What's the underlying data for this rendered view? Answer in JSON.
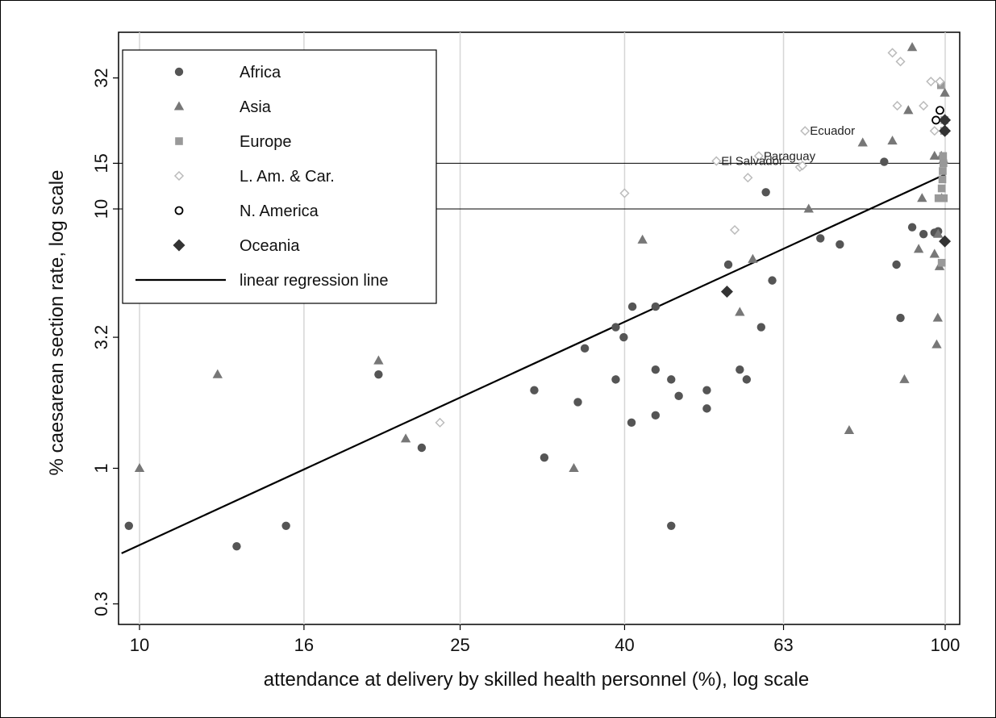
{
  "chart_data": {
    "type": "scatter",
    "title": "",
    "xlabel": "attendance at delivery by skilled health personnel (%), log scale",
    "ylabel": "% caesarean section rate, log scale",
    "x_scale": "log",
    "y_scale": "log",
    "xlim": [
      9.5,
      100
    ],
    "ylim": [
      0.25,
      48
    ],
    "x_ticks": [
      10,
      16,
      25,
      40,
      63,
      100
    ],
    "x_tick_labels": [
      "10",
      "16",
      "25",
      "40",
      "63",
      "100"
    ],
    "y_ticks": [
      0.3,
      1,
      3.2,
      10,
      15,
      32
    ],
    "y_tick_labels": [
      "0.3",
      "1",
      "3.2",
      "10",
      "15",
      "32"
    ],
    "reference_lines_y": [
      10,
      15
    ],
    "vertical_grid": true,
    "legend_position": "top-left",
    "legend": [
      {
        "key": "africa",
        "label": "Africa",
        "marker": "circle",
        "color": "#555555"
      },
      {
        "key": "asia",
        "label": "Asia",
        "marker": "triangle",
        "color": "#777777"
      },
      {
        "key": "europe",
        "label": "Europe",
        "marker": "square",
        "color": "#999999"
      },
      {
        "key": "lamcar",
        "label": "L. Am. & Car.",
        "marker": "diamond-open",
        "color": "#bbbbbb"
      },
      {
        "key": "namerica",
        "label": "N. America",
        "marker": "circle-open",
        "color": "#000000"
      },
      {
        "key": "oceania",
        "label": "Oceania",
        "marker": "diamond",
        "color": "#333333"
      },
      {
        "key": "regression",
        "label": "linear regression line",
        "marker": "line",
        "color": "#000000"
      }
    ],
    "series": [
      {
        "key": "africa",
        "points": [
          [
            9.7,
            0.6
          ],
          [
            13.2,
            0.5
          ],
          [
            15.2,
            0.6
          ],
          [
            19.8,
            2.3
          ],
          [
            22.4,
            1.2
          ],
          [
            30.9,
            2.0
          ],
          [
            31.8,
            1.1
          ],
          [
            35.0,
            1.8
          ],
          [
            35.7,
            2.9
          ],
          [
            39.0,
            2.2
          ],
          [
            39.0,
            3.5
          ],
          [
            39.9,
            3.2
          ],
          [
            40.8,
            1.5
          ],
          [
            40.9,
            4.2
          ],
          [
            43.7,
            1.6
          ],
          [
            43.7,
            2.4
          ],
          [
            43.7,
            4.2
          ],
          [
            45.7,
            0.6
          ],
          [
            45.7,
            2.2
          ],
          [
            46.7,
            1.9
          ],
          [
            50.6,
            1.7
          ],
          [
            50.6,
            2.0
          ],
          [
            53.8,
            6.1
          ],
          [
            55.6,
            2.4
          ],
          [
            56.7,
            2.2
          ],
          [
            59.1,
            3.5
          ],
          [
            59.9,
            11.6
          ],
          [
            61.0,
            5.3
          ],
          [
            70.0,
            7.7
          ],
          [
            74.0,
            7.3
          ],
          [
            84.0,
            15.2
          ],
          [
            87.0,
            6.1
          ],
          [
            88.0,
            3.8
          ],
          [
            91.0,
            8.5
          ],
          [
            94.0,
            8.0
          ],
          [
            97.0,
            8.1
          ],
          [
            98.0,
            8.2
          ]
        ]
      },
      {
        "key": "asia",
        "points": [
          [
            10.0,
            1.0
          ],
          [
            12.5,
            2.3
          ],
          [
            19.8,
            2.6
          ],
          [
            21.4,
            1.3
          ],
          [
            34.6,
            1.0
          ],
          [
            42.1,
            7.6
          ],
          [
            55.6,
            4.0
          ],
          [
            57.7,
            6.4
          ],
          [
            67.7,
            10.0
          ],
          [
            76.0,
            1.4
          ],
          [
            79.0,
            18.0
          ],
          [
            86.0,
            18.3
          ],
          [
            89.0,
            2.2
          ],
          [
            90.0,
            24.0
          ],
          [
            91.0,
            42.0
          ],
          [
            92.7,
            7.0
          ],
          [
            93.6,
            11.0
          ],
          [
            97.0,
            6.7
          ],
          [
            97.0,
            16.0
          ],
          [
            97.6,
            3.0
          ],
          [
            97.9,
            3.8
          ],
          [
            98.0,
            8.0
          ],
          [
            98.4,
            6.0
          ],
          [
            98.9,
            16.0
          ],
          [
            99.0,
            11.0
          ],
          [
            99.5,
            15.5
          ],
          [
            99.9,
            28.0
          ]
        ]
      },
      {
        "key": "europe",
        "points": [
          [
            98.1,
            11.0
          ],
          [
            98.8,
            30.0
          ],
          [
            99.0,
            6.2
          ],
          [
            99.0,
            12.0
          ],
          [
            99.2,
            13.0
          ],
          [
            99.3,
            14.0
          ],
          [
            99.4,
            16.0
          ],
          [
            99.5,
            15.0
          ],
          [
            99.6,
            11.0
          ],
          [
            99.7,
            20.0
          ],
          [
            99.8,
            22.0
          ]
        ]
      },
      {
        "key": "lamcar",
        "points": [
          [
            23.6,
            1.5
          ],
          [
            40.0,
            11.5
          ],
          [
            52.0,
            15.3
          ],
          [
            54.8,
            8.3
          ],
          [
            56.9,
            13.2
          ],
          [
            58.7,
            16.0
          ],
          [
            66.0,
            14.5
          ],
          [
            66.5,
            14.7
          ],
          [
            67.0,
            20.0
          ],
          [
            86.0,
            40.0
          ],
          [
            87.2,
            25.0
          ],
          [
            88.0,
            37.0
          ],
          [
            94.0,
            25.0
          ],
          [
            96.0,
            31.0
          ],
          [
            97.0,
            20.0
          ],
          [
            98.5,
            31.0
          ]
        ]
      },
      {
        "key": "namerica",
        "points": [
          [
            97.4,
            22.0
          ],
          [
            98.5,
            24.0
          ]
        ]
      },
      {
        "key": "oceania",
        "points": [
          [
            53.6,
            4.8
          ],
          [
            99.9,
            20.0
          ],
          [
            99.9,
            22.0
          ],
          [
            99.9,
            7.5
          ]
        ]
      }
    ],
    "regression_line": {
      "x": [
        9.5,
        100
      ],
      "y": [
        0.47,
        13.6
      ]
    },
    "annotations": [
      {
        "text": "El Salvador",
        "x": 52.0,
        "y": 15.3
      },
      {
        "text": "Paraguay",
        "x": 58.7,
        "y": 16.0
      },
      {
        "text": "Ecuador",
        "x": 67.0,
        "y": 20.0
      }
    ]
  }
}
